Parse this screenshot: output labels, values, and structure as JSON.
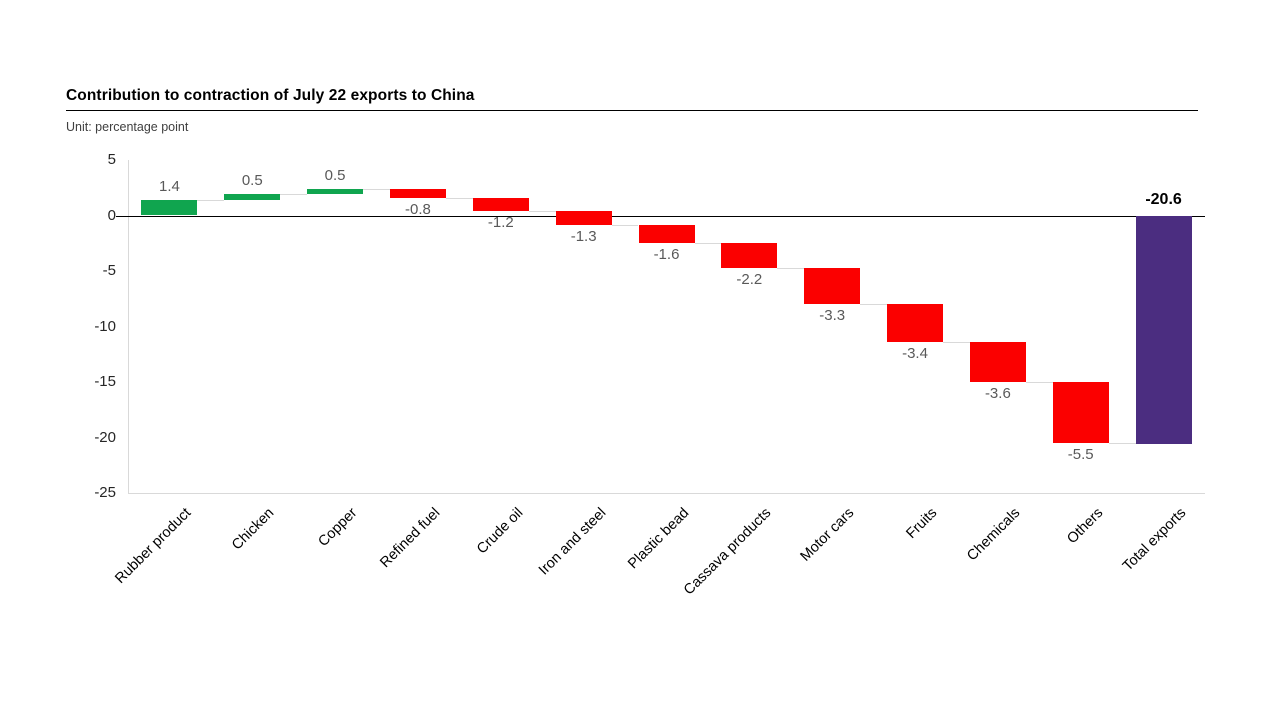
{
  "header": {
    "title": "Contribution to contraction of July 22 exports to China",
    "unit_label": "Unit: percentage point"
  },
  "colors": {
    "increase": "#10A54F",
    "decrease": "#FB0000",
    "total": "#4B2D80",
    "connector": "#D9D9D9",
    "axis_line": "#D9D9D9",
    "zero_line": "#000000",
    "value_label": "#595959",
    "total_label": "#000000"
  },
  "chart_data": {
    "type": "bar",
    "subtype": "waterfall",
    "title": "Contribution to contraction of July 22 exports to China",
    "xlabel": "",
    "ylabel": "percentage point",
    "ylim": [
      -25,
      5
    ],
    "yticks": [
      5,
      0,
      -5,
      -10,
      -15,
      -20,
      -25
    ],
    "grid": false,
    "legend": "none",
    "categories": [
      "Rubber product",
      "Chicken",
      "Copper",
      "Refined fuel",
      "Crude oil",
      "Iron and steel",
      "Plastic bead",
      "Cassava products",
      "Motor cars",
      "Fruits",
      "Chemicals",
      "Others",
      "Total exports"
    ],
    "values": [
      1.4,
      0.5,
      0.5,
      -0.8,
      -1.2,
      -1.3,
      -1.6,
      -2.2,
      -3.3,
      -3.4,
      -3.6,
      -5.5,
      -20.6
    ],
    "value_labels": [
      "1.4",
      "0.5",
      "0.5",
      "-0.8",
      "-1.2",
      "-1.3",
      "-1.6",
      "-2.2",
      "-3.3",
      "-3.4",
      "-3.6",
      "-5.5",
      "-20.6"
    ],
    "bar_types": [
      "increase",
      "increase",
      "increase",
      "decrease",
      "decrease",
      "decrease",
      "decrease",
      "decrease",
      "decrease",
      "decrease",
      "decrease",
      "decrease",
      "total"
    ]
  }
}
